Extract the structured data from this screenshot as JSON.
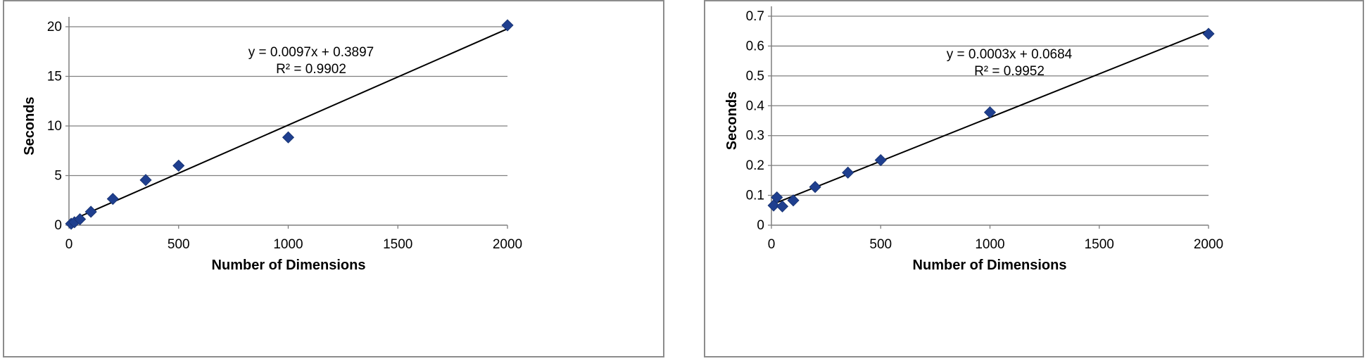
{
  "chart_data": [
    {
      "type": "scatter",
      "xlabel": "Number of Dimensions",
      "ylabel": "Seconds",
      "xlim": [
        0,
        2000
      ],
      "ylim": [
        0,
        20
      ],
      "xticks": [
        "0",
        "500",
        "1000",
        "1500",
        "2000"
      ],
      "yticks": [
        "0",
        "5",
        "10",
        "15",
        "20"
      ],
      "grid": "horizontal",
      "marker_color": "#1f3f8f",
      "points": [
        {
          "x": 10,
          "y": 0.15
        },
        {
          "x": 25,
          "y": 0.3
        },
        {
          "x": 50,
          "y": 0.6
        },
        {
          "x": 100,
          "y": 1.35
        },
        {
          "x": 200,
          "y": 2.65
        },
        {
          "x": 350,
          "y": 4.55
        },
        {
          "x": 500,
          "y": 6.0
        },
        {
          "x": 1000,
          "y": 8.85
        },
        {
          "x": 2000,
          "y": 20.15
        }
      ],
      "trendline": {
        "slope": 0.0097,
        "intercept": 0.3897,
        "x_range": [
          0,
          2000
        ]
      },
      "annotations": {
        "equation": "y = 0.0097x + 0.3897",
        "r2": "R² = 0.9902"
      }
    },
    {
      "type": "scatter",
      "xlabel": "Number of Dimensions",
      "ylabel": "Seconds",
      "xlim": [
        0,
        2000
      ],
      "ylim": [
        0,
        0.7
      ],
      "xticks": [
        "0",
        "500",
        "1000",
        "1500",
        "2000"
      ],
      "yticks": [
        "0",
        "0.1",
        "0.2",
        "0.3",
        "0.4",
        "0.5",
        "0.6",
        "0.7"
      ],
      "grid": "horizontal",
      "marker_color": "#1f3f8f",
      "points": [
        {
          "x": 10,
          "y": 0.066
        },
        {
          "x": 25,
          "y": 0.093
        },
        {
          "x": 50,
          "y": 0.063
        },
        {
          "x": 100,
          "y": 0.083
        },
        {
          "x": 200,
          "y": 0.128
        },
        {
          "x": 350,
          "y": 0.176
        },
        {
          "x": 500,
          "y": 0.218
        },
        {
          "x": 1000,
          "y": 0.378
        },
        {
          "x": 2000,
          "y": 0.641
        }
      ],
      "trendline": {
        "slope": 0.0003,
        "intercept": 0.0684,
        "x_range": [
          0,
          2000
        ],
        "y_end": 0.653
      },
      "annotations": {
        "equation": "y = 0.0003x + 0.0684",
        "r2": "R² = 0.9952"
      }
    }
  ]
}
